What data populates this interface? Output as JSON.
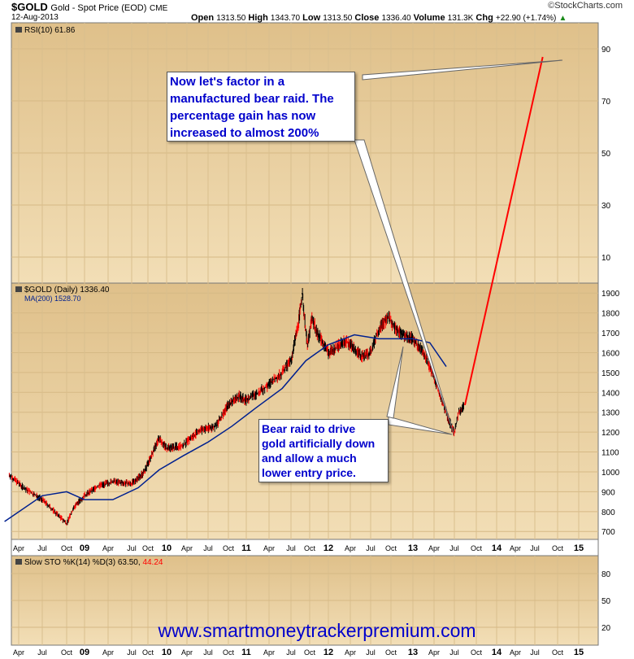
{
  "header": {
    "symbol": "$GOLD",
    "description": "Gold - Spot Price (EOD)",
    "exchange": "CME",
    "date": "12-Aug-2013",
    "open_label": "Open",
    "open_value": "1313.50",
    "high_label": "High",
    "high_value": "1343.70",
    "low_label": "Low",
    "low_value": "1313.50",
    "close_label": "Close",
    "close_value": "1336.40",
    "volume_label": "Volume",
    "volume_value": "131.3K",
    "chg_label": "Chg",
    "chg_value": "+22.90 (+1.74%)",
    "chg_arrow": "up-arrow-icon",
    "brand": "©StockCharts.com"
  },
  "colors": {
    "panel_bg": "#e9cf9c",
    "price_line": "#000000",
    "up_bar": "#000000",
    "down_bar": "#ff0000",
    "ma_line": "#00208f",
    "projection": "#ff0000",
    "callout_text": "#0000cc",
    "stoch_d": "#ff0000"
  },
  "callouts": {
    "top_lines": [
      "Now let's factor in a",
      "manufactured bear raid. The",
      "percentage gain has now",
      "increased to almost 200%"
    ],
    "bottom_lines": [
      "Bear raid to drive",
      "gold artificially down",
      "and allow a much",
      "lower entry price."
    ]
  },
  "website": "www.smartmoneytrackerpremium.com",
  "chart_data": [
    {
      "type": "line",
      "panel": "RSI",
      "legend": "RSI(10) 61.86",
      "y_ticks": [
        10,
        30,
        50,
        70,
        90
      ],
      "ylim": [
        0,
        100
      ],
      "grid": true
    },
    {
      "type": "line",
      "panel": "price",
      "legend_main": "$GOLD (Daily) 1336.40",
      "legend_ma": "MA(200) 1528.70",
      "y_ticks": [
        700,
        800,
        900,
        1000,
        1100,
        1200,
        1300,
        1400,
        1500,
        1600,
        1700,
        1800,
        1900
      ],
      "ylim": [
        660,
        1950
      ],
      "x_ticks": [
        "Apr",
        "Jul",
        "Oct",
        "09",
        "Apr",
        "Jul",
        "Oct",
        "10",
        "Apr",
        "Jul",
        "Oct",
        "11",
        "Apr",
        "Jul",
        "Oct",
        "12",
        "Apr",
        "Jul",
        "Oct",
        "13",
        "Apr",
        "Jul",
        "Oct",
        "14",
        "Apr",
        "Jul",
        "Oct",
        "15"
      ],
      "x": [
        2008.15,
        2008.3,
        2008.5,
        2008.75,
        2008.85,
        2009.0,
        2009.15,
        2009.3,
        2009.5,
        2009.7,
        2009.9,
        2010.0,
        2010.2,
        2010.4,
        2010.6,
        2010.75,
        2010.9,
        2011.0,
        2011.2,
        2011.4,
        2011.5,
        2011.6,
        2011.65,
        2011.72,
        2011.78,
        2011.85,
        2012.0,
        2012.2,
        2012.4,
        2012.5,
        2012.6,
        2012.72,
        2012.8,
        2012.9,
        2013.0,
        2013.15,
        2013.3,
        2013.45,
        2013.5,
        2013.55,
        2013.61
      ],
      "series": [
        {
          "name": "$GOLD",
          "values": [
            985,
            920,
            860,
            740,
            820,
            880,
            930,
            950,
            940,
            1000,
            1170,
            1120,
            1130,
            1210,
            1230,
            1340,
            1380,
            1360,
            1420,
            1500,
            1560,
            1750,
            1900,
            1630,
            1780,
            1700,
            1600,
            1660,
            1580,
            1600,
            1720,
            1780,
            1720,
            1690,
            1670,
            1580,
            1420,
            1240,
            1200,
            1300,
            1336
          ]
        },
        {
          "name": "MA(200)",
          "x": [
            2008.1,
            2008.5,
            2008.75,
            2009.0,
            2009.3,
            2009.6,
            2009.9,
            2010.2,
            2010.5,
            2010.8,
            2011.1,
            2011.4,
            2011.7,
            2012.0,
            2012.3,
            2012.6,
            2012.8,
            2013.0,
            2013.2,
            2013.4
          ],
          "values": [
            750,
            880,
            900,
            860,
            860,
            920,
            1010,
            1080,
            1150,
            1230,
            1320,
            1420,
            1560,
            1640,
            1690,
            1670,
            1670,
            1670,
            1650,
            1530
          ]
        }
      ],
      "projection": {
        "from": [
          2013.62,
          1336
        ],
        "to": [
          2015.0,
          3900
        ],
        "style": "red-line"
      }
    },
    {
      "type": "line",
      "panel": "stochastic",
      "legend": "Slow STO %K(14) %D(3) 63.50,",
      "legend_d_value": "44.24",
      "y_ticks": [
        20,
        50,
        80
      ],
      "ylim": [
        0,
        100
      ],
      "x_ticks": [
        "Apr",
        "Jul",
        "Oct",
        "09",
        "Apr",
        "Jul",
        "Oct",
        "10",
        "Apr",
        "Jul",
        "Oct",
        "11",
        "Apr",
        "Jul",
        "Oct",
        "12",
        "Apr",
        "Jul",
        "Oct",
        "13",
        "Apr",
        "Jul",
        "Oct",
        "14",
        "Apr",
        "Jul",
        "Oct",
        "15"
      ]
    }
  ]
}
